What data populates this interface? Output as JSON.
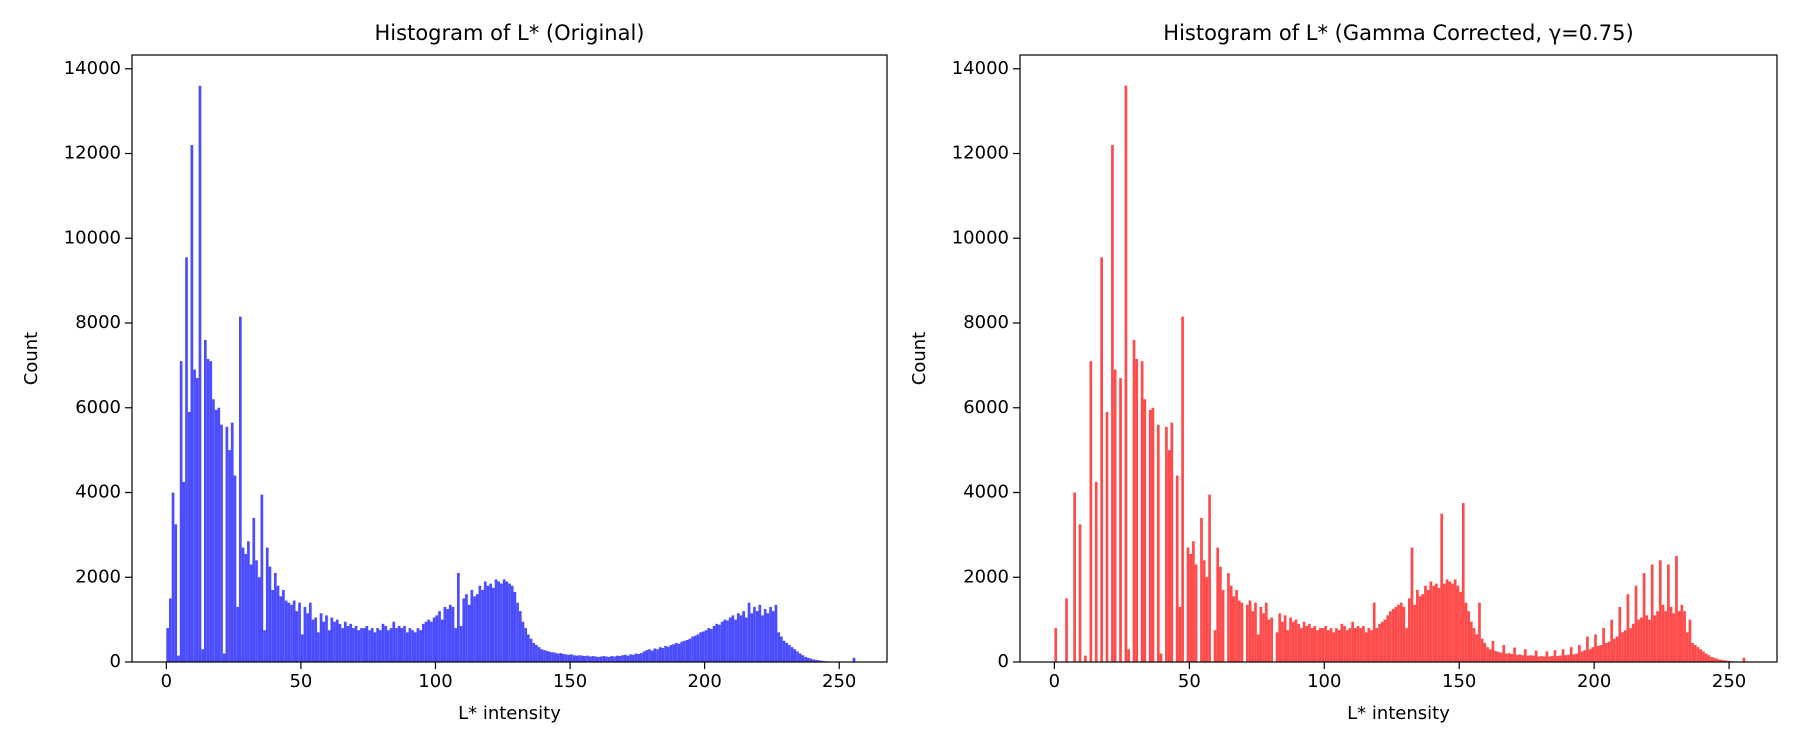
{
  "chart_data": [
    {
      "type": "histogram",
      "title": "Histogram of L* (Original)",
      "xlabel": "L* intensity",
      "ylabel": "Count",
      "color": "#4b4bff",
      "xlim": [
        -12.75,
        267.75
      ],
      "ylim": [
        0,
        14325
      ],
      "xticks": [
        0,
        50,
        100,
        150,
        200,
        250
      ],
      "yticks": [
        0,
        2000,
        4000,
        6000,
        8000,
        10000,
        12000,
        14000
      ],
      "bins": [
        0,
        1,
        2,
        3,
        4,
        5,
        6,
        7,
        8,
        9,
        10,
        11,
        12,
        13,
        14,
        15,
        16,
        17,
        18,
        19,
        20,
        21,
        22,
        23,
        24,
        25,
        26,
        27,
        28,
        29,
        30,
        31,
        32,
        33,
        34,
        35,
        36,
        37,
        38,
        39,
        40,
        41,
        42,
        43,
        44,
        45,
        46,
        47,
        48,
        49,
        50,
        51,
        52,
        53,
        54,
        55,
        56,
        57,
        58,
        59,
        60,
        61,
        62,
        63,
        64,
        65,
        66,
        67,
        68,
        69,
        70,
        71,
        72,
        73,
        74,
        75,
        76,
        77,
        78,
        79,
        80,
        81,
        82,
        83,
        84,
        85,
        86,
        87,
        88,
        89,
        90,
        91,
        92,
        93,
        94,
        95,
        96,
        97,
        98,
        99,
        100,
        101,
        102,
        103,
        104,
        105,
        106,
        107,
        108,
        109,
        110,
        111,
        112,
        113,
        114,
        115,
        116,
        117,
        118,
        119,
        120,
        121,
        122,
        123,
        124,
        125,
        126,
        127,
        128,
        129,
        130,
        131,
        132,
        133,
        134,
        135,
        136,
        137,
        138,
        139,
        140,
        141,
        142,
        143,
        144,
        145,
        146,
        147,
        148,
        149,
        150,
        151,
        152,
        153,
        154,
        155,
        156,
        157,
        158,
        159,
        160,
        161,
        162,
        163,
        164,
        165,
        166,
        167,
        168,
        169,
        170,
        171,
        172,
        173,
        174,
        175,
        176,
        177,
        178,
        179,
        180,
        181,
        182,
        183,
        184,
        185,
        186,
        187,
        188,
        189,
        190,
        191,
        192,
        193,
        194,
        195,
        196,
        197,
        198,
        199,
        200,
        201,
        202,
        203,
        204,
        205,
        206,
        207,
        208,
        209,
        210,
        211,
        212,
        213,
        214,
        215,
        216,
        217,
        218,
        219,
        220,
        221,
        222,
        223,
        224,
        225,
        226,
        227,
        228,
        229,
        230,
        231,
        232,
        233,
        234,
        235,
        236,
        237,
        238,
        239,
        240,
        241,
        242,
        243,
        244,
        245,
        246,
        247,
        248,
        249,
        250,
        251,
        252,
        253,
        254,
        255,
        256
      ],
      "counts": [
        800,
        1500,
        4000,
        3250,
        150,
        7100,
        4250,
        9550,
        5900,
        12200,
        6900,
        6700,
        13600,
        300,
        7600,
        7150,
        7100,
        6200,
        5950,
        6000,
        5600,
        200,
        5550,
        5000,
        5650,
        4400,
        1300,
        8150,
        2700,
        2550,
        2850,
        2300,
        3400,
        2400,
        2000,
        3950,
        750,
        2700,
        2250,
        1700,
        2100,
        1800,
        1550,
        1700,
        1450,
        1400,
        1350,
        1450,
        1200,
        1400,
        650,
        1300,
        1150,
        1400,
        1000,
        1050,
        700,
        1150,
        950,
        1100,
        750,
        1050,
        950,
        1000,
        900,
        800,
        950,
        850,
        900,
        800,
        850,
        750,
        800,
        800,
        850,
        750,
        800,
        700,
        800,
        750,
        900,
        850,
        750,
        800,
        950,
        800,
        850,
        800,
        850,
        700,
        800,
        750,
        700,
        800,
        750,
        900,
        950,
        1000,
        950,
        1050,
        1100,
        1200,
        1000,
        1300,
        1250,
        1350,
        1300,
        800,
        2100,
        850,
        1500,
        1600,
        1350,
        1700,
        1550,
        1600,
        1800,
        1700,
        1900,
        1800,
        1850,
        1750,
        1950,
        1900,
        1850,
        1950,
        1900,
        1850,
        1800,
        1650,
        1400,
        1200,
        950,
        800,
        650,
        550,
        450,
        400,
        350,
        300,
        280,
        260,
        240,
        230,
        220,
        200,
        210,
        190,
        180,
        170,
        180,
        160,
        150,
        160,
        150,
        140,
        150,
        130,
        140,
        130,
        120,
        130,
        140,
        130,
        120,
        140,
        130,
        150,
        140,
        160,
        170,
        150,
        180,
        170,
        200,
        190,
        210,
        250,
        280,
        300,
        270,
        320,
        300,
        350,
        330,
        380,
        360,
        400,
        420,
        450,
        430,
        480,
        500,
        520,
        550,
        600,
        620,
        650,
        700,
        720,
        750,
        800,
        780,
        850,
        900,
        880,
        950,
        1000,
        980,
        1050,
        1100,
        1000,
        1150,
        1100,
        1200,
        1050,
        1400,
        1150,
        1300,
        1200,
        1350,
        1100,
        1250,
        1150,
        1300,
        1200,
        1350,
        700,
        600,
        500,
        450,
        400,
        350,
        300,
        250,
        200,
        160,
        120,
        100,
        80,
        60,
        50,
        40,
        30,
        20,
        15,
        10,
        8,
        5,
        3,
        2,
        1,
        0,
        0,
        0,
        100
      ]
    },
    {
      "type": "histogram",
      "title": "Histogram of L* (Gamma Corrected, γ=0.75)",
      "xlabel": "L* intensity",
      "ylabel": "Count",
      "color": "#ff4b4b",
      "xlim": [
        -12.75,
        267.75
      ],
      "ylim": [
        0,
        14325
      ],
      "xticks": [
        0,
        50,
        100,
        150,
        200,
        250
      ],
      "yticks": [
        0,
        2000,
        4000,
        6000,
        8000,
        10000,
        12000,
        14000
      ],
      "bins": [
        0,
        1,
        2,
        3,
        4,
        5,
        6,
        7,
        8,
        9,
        10,
        11,
        12,
        13,
        14,
        15,
        16,
        17,
        18,
        19,
        20,
        21,
        22,
        23,
        24,
        25,
        26,
        27,
        28,
        29,
        30,
        31,
        32,
        33,
        34,
        35,
        36,
        37,
        38,
        39,
        40,
        41,
        42,
        43,
        44,
        45,
        46,
        47,
        48,
        49,
        50,
        51,
        52,
        53,
        54,
        55,
        56,
        57,
        58,
        59,
        60,
        61,
        62,
        63,
        64,
        65,
        66,
        67,
        68,
        69,
        70,
        71,
        72,
        73,
        74,
        75,
        76,
        77,
        78,
        79,
        80,
        81,
        82,
        83,
        84,
        85,
        86,
        87,
        88,
        89,
        90,
        91,
        92,
        93,
        94,
        95,
        96,
        97,
        98,
        99,
        100,
        101,
        102,
        103,
        104,
        105,
        106,
        107,
        108,
        109,
        110,
        111,
        112,
        113,
        114,
        115,
        116,
        117,
        118,
        119,
        120,
        121,
        122,
        123,
        124,
        125,
        126,
        127,
        128,
        129,
        130,
        131,
        132,
        133,
        134,
        135,
        136,
        137,
        138,
        139,
        140,
        141,
        142,
        143,
        144,
        145,
        146,
        147,
        148,
        149,
        150,
        151,
        152,
        153,
        154,
        155,
        156,
        157,
        158,
        159,
        160,
        161,
        162,
        163,
        164,
        165,
        166,
        167,
        168,
        169,
        170,
        171,
        172,
        173,
        174,
        175,
        176,
        177,
        178,
        179,
        180,
        181,
        182,
        183,
        184,
        185,
        186,
        187,
        188,
        189,
        190,
        191,
        192,
        193,
        194,
        195,
        196,
        197,
        198,
        199,
        200,
        201,
        202,
        203,
        204,
        205,
        206,
        207,
        208,
        209,
        210,
        211,
        212,
        213,
        214,
        215,
        216,
        217,
        218,
        219,
        220,
        221,
        222,
        223,
        224,
        225,
        226,
        227,
        228,
        229,
        230,
        231,
        232,
        233,
        234,
        235,
        236,
        237,
        238,
        239,
        240,
        241,
        242,
        243,
        244,
        245,
        246,
        247,
        248,
        249,
        250,
        251,
        252,
        253,
        254,
        255,
        256
      ],
      "counts": [
        800,
        0,
        0,
        0,
        1500,
        0,
        0,
        4000,
        0,
        3250,
        0,
        150,
        0,
        7100,
        0,
        4250,
        0,
        9550,
        0,
        5900,
        0,
        12200,
        6900,
        0,
        6700,
        0,
        13600,
        300,
        0,
        7600,
        7150,
        0,
        7100,
        6200,
        0,
        5950,
        6000,
        0,
        5600,
        200,
        0,
        5550,
        5000,
        5650,
        0,
        4400,
        1300,
        8150,
        0,
        2700,
        2550,
        2850,
        2300,
        0,
        3400,
        2400,
        2000,
        3950,
        0,
        750,
        2700,
        2250,
        1700,
        0,
        2100,
        1800,
        1550,
        1700,
        1450,
        1400,
        0,
        1350,
        1450,
        1200,
        1400,
        650,
        1300,
        1150,
        1400,
        1000,
        1050,
        0,
        700,
        1150,
        950,
        1100,
        750,
        1050,
        950,
        1000,
        900,
        800,
        950,
        850,
        900,
        800,
        850,
        750,
        800,
        800,
        850,
        750,
        800,
        700,
        800,
        750,
        900,
        850,
        750,
        800,
        950,
        800,
        850,
        800,
        850,
        700,
        800,
        750,
        1400,
        800,
        900,
        950,
        1000,
        1100,
        1200,
        1250,
        1300,
        1350,
        1400,
        1300,
        800,
        1500,
        2700,
        1350,
        1700,
        1550,
        1600,
        1800,
        1700,
        1900,
        1800,
        1850,
        1750,
        3500,
        1850,
        1950,
        1900,
        1850,
        1950,
        1800,
        1650,
        3750,
        1400,
        1200,
        950,
        800,
        650,
        1400,
        550,
        450,
        350,
        300,
        500,
        260,
        240,
        220,
        400,
        200,
        210,
        190,
        340,
        170,
        180,
        160,
        300,
        150,
        160,
        150,
        270,
        130,
        140,
        130,
        250,
        130,
        140,
        280,
        140,
        150,
        300,
        160,
        170,
        350,
        180,
        200,
        400,
        250,
        280,
        600,
        300,
        350,
        650,
        380,
        400,
        800,
        450,
        480,
        1000,
        550,
        600,
        1300,
        700,
        750,
        1600,
        800,
        900,
        1800,
        1000,
        1050,
        2100,
        1100,
        1000,
        2300,
        1100,
        1200,
        2400,
        1350,
        1200,
        2300,
        1300,
        1150,
        2500,
        1200,
        1350,
        1200,
        700,
        1000,
        450,
        400,
        350,
        300,
        250,
        200,
        160,
        120,
        100,
        80,
        60,
        50,
        40,
        30,
        20,
        15,
        10,
        5,
        0,
        100
      ]
    }
  ]
}
